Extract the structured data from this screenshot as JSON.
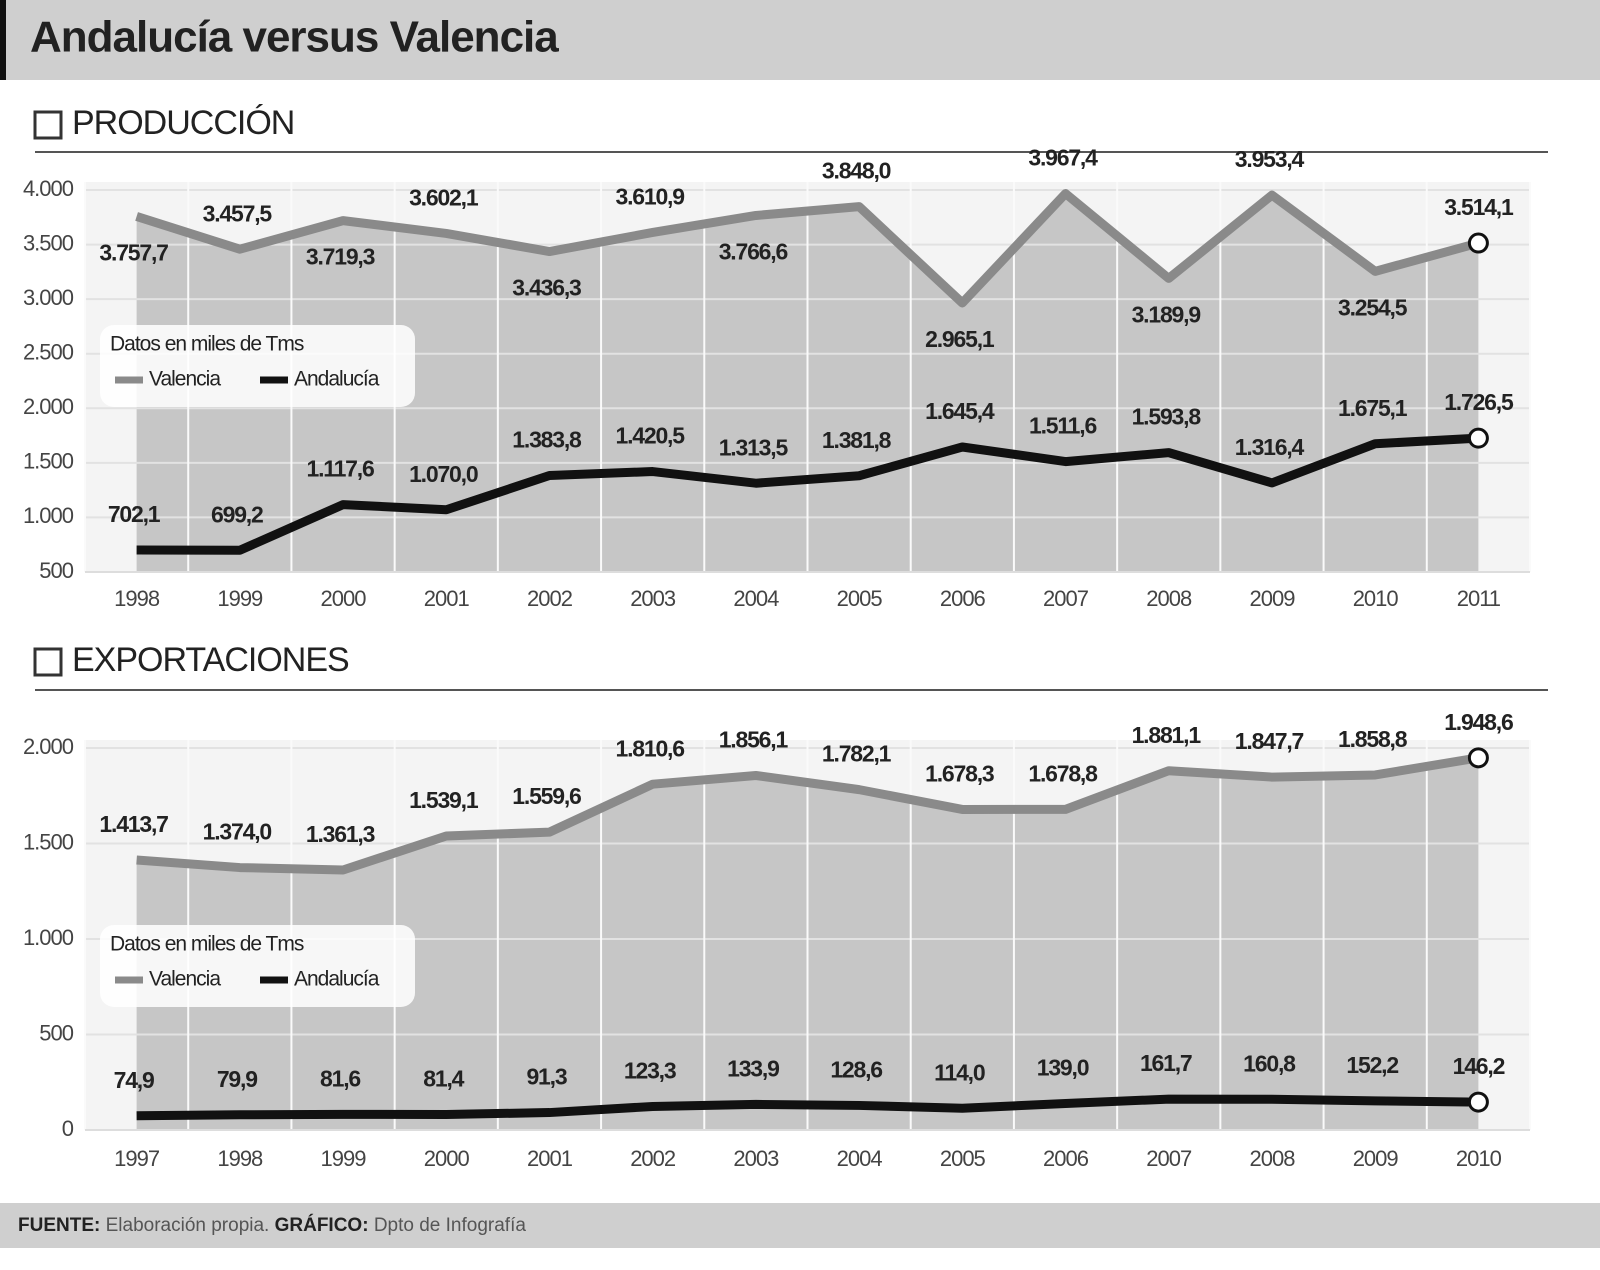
{
  "header": {
    "title": "Andalucía versus Valencia"
  },
  "chart_data": [
    {
      "type": "line",
      "title": "PRODUCCIÓN",
      "legend_title": "Datos en miles de Tms",
      "categories": [
        "1998",
        "1999",
        "2000",
        "2001",
        "2002",
        "2003",
        "2004",
        "2005",
        "2006",
        "2007",
        "2008",
        "2009",
        "2010",
        "2011"
      ],
      "series": [
        {
          "name": "Valencia",
          "color": "#8a8a8a",
          "fill": "#c6c6c6",
          "values": [
            3757.7,
            3457.5,
            3719.3,
            3602.1,
            3436.3,
            3610.9,
            3766.6,
            3848.0,
            2965.1,
            3967.4,
            3189.9,
            3953.4,
            3254.5,
            3514.1
          ],
          "value_labels": [
            "3.757,7",
            "3.457,5",
            "3.719,3",
            "3.602,1",
            "3.436,3",
            "3.610,9",
            "3.766,6",
            "3.848,0",
            "2.965,1",
            "3.967,4",
            "3.189,9",
            "3.953,4",
            "3.254,5",
            "3.514,1"
          ]
        },
        {
          "name": "Andalucía",
          "color": "#111111",
          "values": [
            702.1,
            699.2,
            1117.6,
            1070.0,
            1383.8,
            1420.5,
            1313.5,
            1381.8,
            1645.4,
            1511.6,
            1593.8,
            1316.4,
            1675.1,
            1726.5
          ],
          "value_labels": [
            "702,1",
            "699,2",
            "1.117,6",
            "1.070,0",
            "1.383,8",
            "1.420,5",
            "1.313,5",
            "1.381,8",
            "1.645,4",
            "1.511,6",
            "1.593,8",
            "1.316,4",
            "1.675,1",
            "1.726,5"
          ]
        }
      ],
      "ylim": [
        500,
        4000
      ],
      "yticks": [
        500,
        {
          "value": 1000,
          "label": "1.000"
        },
        {
          "value": 1500,
          "label": "1.500"
        },
        {
          "value": 2000,
          "label": "2.000"
        },
        {
          "value": 2500,
          "label": "2.500"
        },
        {
          "value": 3000,
          "label": "3.000"
        },
        {
          "value": 3500,
          "label": "3.500"
        },
        {
          "value": 4000,
          "label": "4.000"
        }
      ],
      "grid": true
    },
    {
      "type": "line",
      "title": "EXPORTACIONES",
      "legend_title": "Datos en miles de Tms",
      "categories": [
        "1997",
        "1998",
        "1999",
        "2000",
        "2001",
        "2002",
        "2003",
        "2004",
        "2005",
        "2006",
        "2007",
        "2008",
        "2009",
        "2010"
      ],
      "series": [
        {
          "name": "Valencia",
          "color": "#8a8a8a",
          "fill": "#c6c6c6",
          "values": [
            1413.7,
            1374.0,
            1361.3,
            1539.1,
            1559.6,
            1810.6,
            1856.1,
            1782.1,
            1678.3,
            1678.8,
            1881.1,
            1847.7,
            1858.8,
            1948.6
          ],
          "value_labels": [
            "1.413,7",
            "1.374,0",
            "1.361,3",
            "1.539,1",
            "1.559,6",
            "1.810,6",
            "1.856,1",
            "1.782,1",
            "1.678,3",
            "1.678,8",
            "1.881,1",
            "1.847,7",
            "1.858,8",
            "1.948,6"
          ]
        },
        {
          "name": "Andalucía",
          "color": "#111111",
          "values": [
            74.9,
            79.9,
            81.6,
            81.4,
            91.3,
            123.3,
            133.9,
            128.6,
            114.0,
            139.0,
            161.7,
            160.8,
            152.2,
            146.2
          ],
          "value_labels": [
            "74,9",
            "79,9",
            "81,6",
            "81,4",
            "91,3",
            "123,3",
            "133,9",
            "128,6",
            "114,0",
            "139,0",
            "161,7",
            "160,8",
            "152,2",
            "146,2"
          ]
        }
      ],
      "ylim": [
        0,
        2000
      ],
      "yticks": [
        0,
        500,
        {
          "value": 1000,
          "label": "1.000"
        },
        {
          "value": 1500,
          "label": "1.500"
        },
        {
          "value": 2000,
          "label": "2.000"
        }
      ],
      "grid": true
    }
  ],
  "footer": {
    "source_label": "FUENTE:",
    "source": "Elaboración propia.",
    "graphic_label": "GRÁFICO:",
    "graphic": "Dpto de Infografía"
  }
}
